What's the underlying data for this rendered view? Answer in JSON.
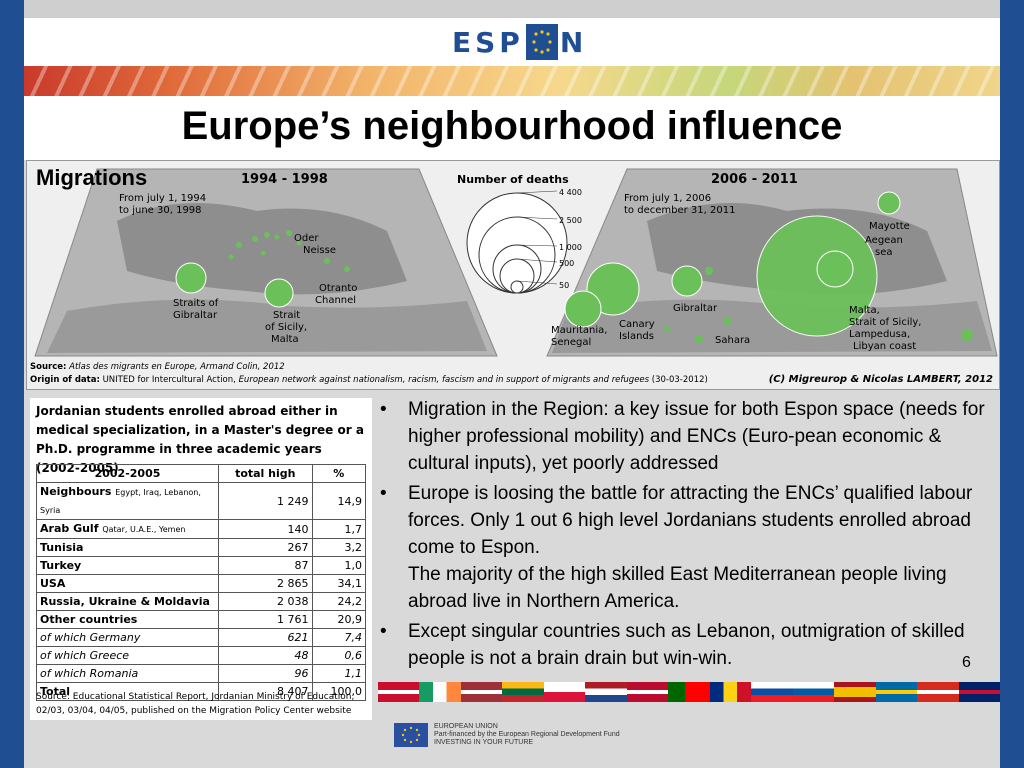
{
  "header": {
    "logo_text_left": "ESP",
    "logo_text_right": "N"
  },
  "title": "Europe’s neighbourhood influence",
  "map": {
    "label": "Migrations",
    "left_title": "1994 - 1998",
    "left_period": [
      "From july 1, 1994",
      "to june 30, 1998"
    ],
    "center_title": "Number of deaths",
    "legend_values": [
      "4 400",
      "2 500",
      "1 000",
      "500",
      "50"
    ],
    "right_title": "2006 - 2011",
    "right_period": [
      "From july 1, 2006",
      "to december 31, 2011"
    ],
    "left_labels": {
      "oder": [
        "Oder",
        "Neisse"
      ],
      "otranto": [
        "Otranto",
        "Channel"
      ],
      "gibraltar": [
        "Straits of",
        "Gibraltar"
      ],
      "sicily": [
        "Strait",
        "of Sicily,",
        "Malta"
      ]
    },
    "right_labels": {
      "mayotte": "Mayotte",
      "aegean": [
        "Aegean",
        "sea"
      ],
      "gibraltar": "Gibraltar",
      "malta": [
        "Malta,",
        "Strait of Sicily,",
        "Lampedusa,",
        "Libyan coast"
      ],
      "mauritania": [
        "Mauritania,",
        "Senegal"
      ],
      "canary": [
        "Canary",
        "Islands"
      ],
      "sahara": "Sahara"
    },
    "source_label": "Source:",
    "source_text": "Atlas des migrants en Europe, Armand Colin, 2012",
    "origin_label": "Origin of data:",
    "origin_text_plain": "UNITED for Intercultural Action,",
    "origin_text_italic": "European network against nationalism, racism, fascism and in support of migrants and refugees",
    "origin_date": "(30-03-2012)",
    "credit": "(C) Migreurop & Nicolas LAMBERT, 2012"
  },
  "table_panel": {
    "title": "Jordanian students enrolled abroad either in medical specialization, in a Master's degree or a Ph.D. programme in three academic years (2002-2005)",
    "columns": [
      "2002-2005",
      "total high",
      "%"
    ],
    "rows": [
      {
        "label": "Neighbours",
        "note": "Egypt, Iraq, Lebanon, Syria",
        "total": "1 249",
        "pct": "14,9"
      },
      {
        "label": "Arab Gulf",
        "note": "Qatar, U.A.E., Yemen",
        "total": "140",
        "pct": "1,7"
      },
      {
        "label": "Tunisia",
        "note": "",
        "total": "267",
        "pct": "3,2"
      },
      {
        "label": "Turkey",
        "note": "",
        "total": "87",
        "pct": "1,0"
      },
      {
        "label": "USA",
        "note": "",
        "total": "2 865",
        "pct": "34,1"
      },
      {
        "label": "Russia, Ukraine & Moldavia",
        "note": "",
        "total": "2 038",
        "pct": "24,2"
      },
      {
        "label": "Other countries",
        "note": "",
        "total": "1 761",
        "pct": "20,9"
      },
      {
        "label": "of which Germany",
        "note": "",
        "total": "621",
        "pct": "7,4",
        "italic": true
      },
      {
        "label": "of which Greece",
        "note": "",
        "total": "48",
        "pct": "0,6",
        "italic": true
      },
      {
        "label": "of which Romania",
        "note": "",
        "total": "96",
        "pct": "1,1",
        "italic": true
      },
      {
        "label": "Total",
        "note": "",
        "total": "8 407",
        "pct": "100,0"
      }
    ],
    "source": "Source: Educational Statistical Report, Jordanian Ministry of Education, 02/03, 03/04, 04/05, published on the Migration Policy Center website"
  },
  "bullets": [
    {
      "text": "Migration in the Region: a key issue for both Espon space (needs for higher professional mobility) and ENCs (Euro-pean economic & cultural inputs), yet poorly addressed"
    },
    {
      "text": "Europe is loosing the battle for attracting the ENCs’ qualified labour forces. Only 1 out 6 high level Jordanians students enrolled abroad come to Espon.",
      "text2": "The majority of the high skilled East Mediterranean people living abroad live in Northern America."
    },
    {
      "text": "Except singular countries such as Lebanon, outmigration of skilled people is not a brain drain but win-win."
    }
  ],
  "page_number": "6",
  "footer": {
    "eu_line1": "EUROPEAN UNION",
    "eu_line2": "Part-financed by the European Regional Development Fund",
    "eu_line3": "INVESTING IN YOUR FUTURE"
  },
  "colors": {
    "frame": "#1f4e92",
    "circle_green": "#6cc05a",
    "map_grey": "#a8a8a8"
  }
}
